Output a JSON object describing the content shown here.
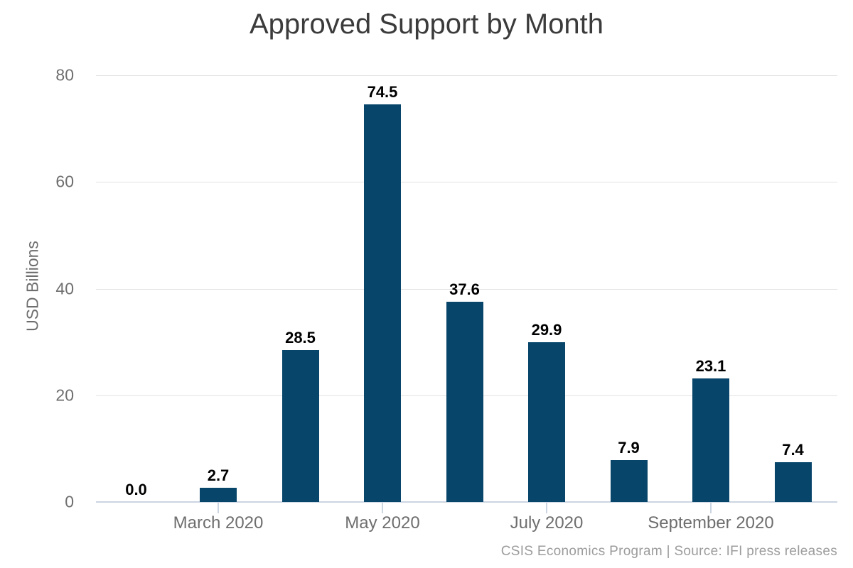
{
  "chart_data": {
    "type": "bar",
    "title": "Approved Support by Month",
    "ylabel": "USD Billions",
    "xlabel": "",
    "categories": [
      "",
      "March 2020",
      "",
      "May 2020",
      "",
      "July 2020",
      "",
      "September 2020",
      ""
    ],
    "values": [
      0.0,
      2.7,
      28.5,
      74.5,
      37.6,
      29.9,
      7.9,
      23.1,
      7.4
    ],
    "data_labels": [
      "0.0",
      "2.7",
      "28.5",
      "74.5",
      "37.6",
      "29.9",
      "7.9",
      "23.1",
      "7.4"
    ],
    "y_ticks": [
      0,
      20,
      40,
      60,
      80
    ],
    "y_tick_labels": [
      "0",
      "20",
      "40",
      "60",
      "80"
    ],
    "ylim": [
      0,
      80
    ],
    "grid": true,
    "legend": "none",
    "source": "CSIS Economics Program | Source: IFI press releases",
    "colors": {
      "bar": "#07456a",
      "gridline": "#e2e2e2",
      "axis_line": "#ccd5e2",
      "tick_label": "#6e6e6e",
      "data_label": "#000000",
      "title": "#3b3b3b",
      "source": "#9c9c9c",
      "background": "#ffffff"
    }
  }
}
